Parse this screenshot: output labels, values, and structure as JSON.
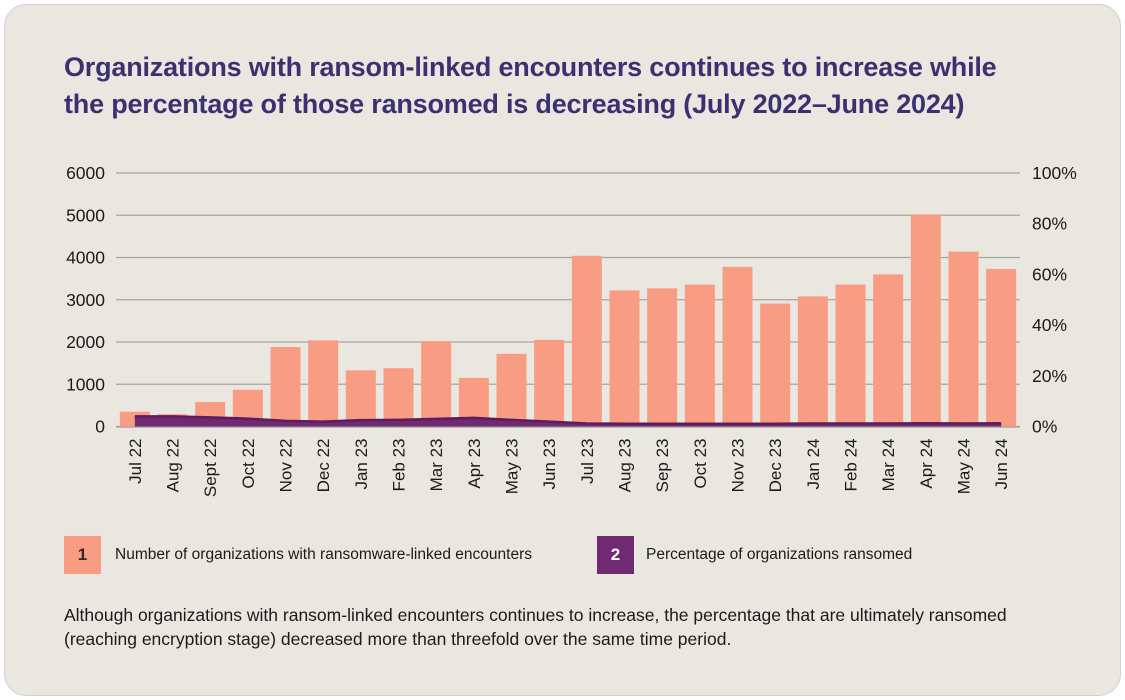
{
  "header": {
    "line1": "Organizations with ransom-linked encounters continues to increase while",
    "line2": "the percentage of those ransomed is decreasing (July 2022–June 2024)"
  },
  "chart_data": {
    "type": "bar",
    "title": "Organizations with ransom-linked encounters continues to increase while the percentage of those ransomed is decreasing (July 2022–June 2024)",
    "categories": [
      "Jul 22",
      "Aug 22",
      "Sept 22",
      "Oct 22",
      "Nov 22",
      "Dec 22",
      "Jan 23",
      "Feb 23",
      "Mar 23",
      "Apr 23",
      "May 23",
      "Jun 23",
      "Jul 23",
      "Aug 23",
      "Sep 23",
      "Oct 23",
      "Nov 23",
      "Dec 23",
      "Jan 24",
      "Feb 24",
      "Mar 24",
      "Apr 24",
      "May 24",
      "Jun 24"
    ],
    "series": [
      {
        "name": "Number of organizations with ransomware-linked encounters",
        "type": "bar",
        "axis": "left",
        "values": [
          350,
          290,
          580,
          870,
          1880,
          2040,
          1330,
          1380,
          2020,
          1150,
          1720,
          2050,
          4040,
          3220,
          3270,
          3360,
          3780,
          2910,
          3080,
          3360,
          3600,
          5020,
          4140,
          3730
        ]
      },
      {
        "name": "Percentage of organizations ransomed",
        "type": "area",
        "axis": "right",
        "values": [
          4.0,
          4.0,
          3.6,
          3.1,
          2.2,
          1.9,
          2.5,
          2.6,
          3.0,
          3.4,
          2.6,
          1.9,
          1.2,
          1.1,
          1.1,
          1.1,
          1.1,
          1.1,
          1.2,
          1.2,
          1.2,
          1.3,
          1.2,
          1.3
        ]
      }
    ],
    "left_axis": {
      "min": 0,
      "max": 6000,
      "step": 1000,
      "ticks": [
        "0",
        "1000",
        "2000",
        "3000",
        "4000",
        "5000",
        "6000"
      ]
    },
    "right_axis": {
      "min": 0,
      "max": 100,
      "step": 20,
      "ticks": [
        "0%",
        "20%",
        "40%",
        "60%",
        "80%",
        "100%"
      ]
    },
    "grid": "horizontal",
    "legend_position": "bottom"
  },
  "legend": {
    "items": [
      {
        "marker": "1",
        "label": "Number of organizations with ransomware-linked encounters"
      },
      {
        "marker": "2",
        "label": "Percentage of organizations ransomed"
      }
    ]
  },
  "footnote": "Although organizations with ransom-linked encounters continues to increase, the percentage that are ultimately ransomed (reaching encryption stage) decreased more than threefold over the same time period.",
  "colors": {
    "bar": "#F99C84",
    "area": "#702A72",
    "area_stroke": "#5C1C5E",
    "gridline": "#A9A69E",
    "axis_text": "#1b1b1b",
    "title_text": "#3C3170",
    "card_background": "#E9E7E0"
  }
}
